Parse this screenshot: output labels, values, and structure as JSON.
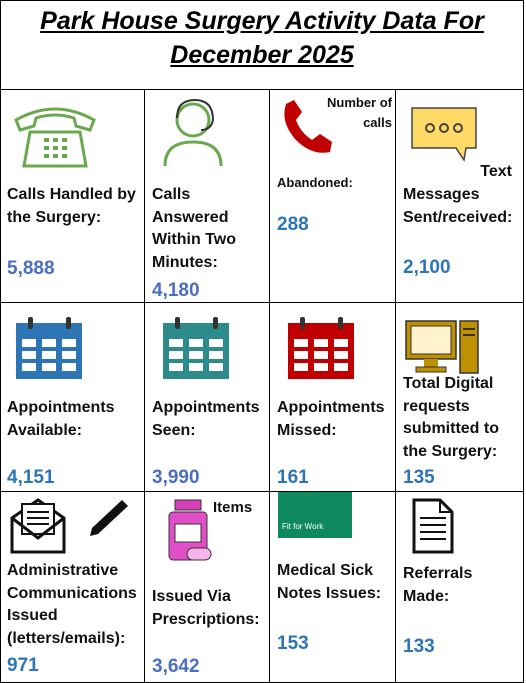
{
  "title": "Park House Surgery Activity Data For December 2025",
  "cells": [
    {
      "label": "Calls Handled by the Surgery:",
      "value": "5,888"
    },
    {
      "label": "Calls Answered Within Two Minutes:",
      "value": "4,180"
    },
    {
      "note": "Number of calls",
      "label": "Abandoned:",
      "value": "288"
    },
    {
      "note": "Text",
      "label": "Messages Sent/received:",
      "value": "2,100"
    },
    {
      "label": "Appointments Available:",
      "value": "4,151"
    },
    {
      "label": "Appointments Seen:",
      "value": "3,990"
    },
    {
      "label": "Appointments Missed:",
      "value": "161"
    },
    {
      "label": "Total Digital requests submitted to the Surgery:",
      "value": "135"
    },
    {
      "label": "Administrative Communications Issued (letters/emails):",
      "value": "971"
    },
    {
      "note": "Items",
      "label": "Issued Via Prescriptions:",
      "value": "3,642"
    },
    {
      "image_text": "Fit for Work",
      "label": "Medical Sick Notes Issues:",
      "value": "153"
    },
    {
      "label": "Referrals Made:",
      "value": "133"
    }
  ]
}
